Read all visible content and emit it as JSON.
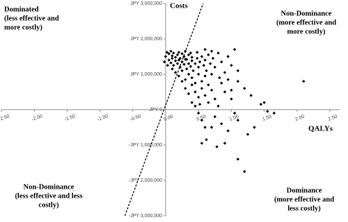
{
  "chart_data": {
    "type": "scatter",
    "x_label": "QALYs",
    "y_label": "Costs",
    "xlim": [
      -2.5,
      2.5
    ],
    "ylim": [
      -3000000,
      3000000
    ],
    "xticks": [
      {
        "value": -2.5,
        "label": "-2.50"
      },
      {
        "value": -2,
        "label": "-2.00"
      },
      {
        "value": -1.5,
        "label": "-1.50"
      },
      {
        "value": -1,
        "label": "-1.00"
      },
      {
        "value": -0.5,
        "label": "-0.50"
      },
      {
        "value": 0,
        "label": "0.00"
      },
      {
        "value": 0.5,
        "label": "0.50"
      },
      {
        "value": 1,
        "label": "1.00"
      },
      {
        "value": 1.5,
        "label": "1.50"
      },
      {
        "value": 2,
        "label": "2.00"
      },
      {
        "value": 2.5,
        "label": "2.50"
      }
    ],
    "yticks": [
      {
        "value": 3000000,
        "label": "JPY 3,000,000"
      },
      {
        "value": 2000000,
        "label": "JPY 2,000,000"
      },
      {
        "value": 1000000,
        "label": "JPY 1,000,000"
      },
      {
        "value": 0,
        "label": "JPY 0"
      },
      {
        "value": -1000000,
        "label": "-JPY 1,000,000"
      },
      {
        "value": -2000000,
        "label": "-JPY 2,000,000"
      },
      {
        "value": -3000000,
        "label": "-JPY 3,000,000"
      }
    ],
    "color": "#000000",
    "threshold_line": {
      "x": [
        -0.62,
        0.57
      ],
      "values": [
        -3000000,
        3000000
      ]
    },
    "annotations": [
      {
        "lines": [
          "Dominated",
          "(less effective and",
          "more costly)"
        ]
      },
      {
        "lines": [
          "Non-Dominance",
          "(more effective and",
          "more costly)"
        ]
      },
      {
        "lines": [
          "Non-Dominance",
          "(less effective and less",
          "costly)"
        ]
      },
      {
        "lines": [
          "Dominance",
          "(more effective and",
          "less costly)"
        ]
      }
    ],
    "x": [
      0.02,
      0.05,
      0.08,
      0.1,
      0.12,
      0.15,
      0.18,
      0.2,
      0.22,
      0.25,
      0.28,
      0.3,
      0.32,
      0.35,
      0.38,
      0.4,
      0.05,
      0.08,
      0.1,
      0.12,
      0.15,
      0.18,
      0.2,
      0.22,
      0.25,
      0.28,
      0.3,
      0.32,
      0.35,
      0.38,
      0.4,
      0.42,
      0.45,
      0.48,
      0.5,
      0.52,
      0.55,
      0.58,
      0.6,
      0.62,
      0.65,
      0.68,
      0.7,
      0.72,
      0.75,
      0.8,
      0.85,
      0.9,
      0.95,
      1.0,
      1.05,
      1.1,
      0.82,
      0.15,
      0.2,
      0.25,
      0.3,
      0.35,
      0.4,
      0.45,
      0.5,
      0.55,
      0.6,
      0.65,
      0.3,
      0.35,
      0.4,
      0.45,
      0.5,
      0.55,
      0.6,
      0.65,
      0.7,
      0.75,
      0.8,
      0.9,
      1.0,
      1.1,
      1.2,
      1.3,
      1.45,
      1.5,
      1.55,
      1.65,
      2.1,
      0.5,
      0.55,
      0.6,
      0.75,
      0.85,
      0.95,
      1.05,
      1.1,
      1.25,
      1.35,
      0.55,
      0.62,
      0.7,
      0.78,
      0.9,
      1.1,
      1.2,
      0.4,
      0.45,
      0.25,
      0.1,
      0.0,
      -0.02,
      0.03,
      0.85,
      0.95,
      1.0,
      0.7,
      0.6,
      0.48,
      0.52
    ],
    "values": [
      1620000,
      1580000,
      1650000,
      1520000,
      1600000,
      1480000,
      1550000,
      1620000,
      1450000,
      1580000,
      1500000,
      1650000,
      1420000,
      1550000,
      1600000,
      1480000,
      1400000,
      1320000,
      1450000,
      1250000,
      1380000,
      1300000,
      1400000,
      1200000,
      1350000,
      1280000,
      1420000,
      1150000,
      1300000,
      1220000,
      1380000,
      1100000,
      1300000,
      1450000,
      1200000,
      1350000,
      1500000,
      1250000,
      1400000,
      1100000,
      1550000,
      1300000,
      1000000,
      1450000,
      1200000,
      1600000,
      1350000,
      1050000,
      1500000,
      1250000,
      1700000,
      1100000,
      900000,
      1050000,
      950000,
      1100000,
      850000,
      1000000,
      900000,
      750000,
      1000000,
      800000,
      950000,
      700000,
      600000,
      450000,
      700000,
      500000,
      350000,
      600000,
      400000,
      200000,
      550000,
      300000,
      100000,
      500000,
      300000,
      800000,
      600000,
      400000,
      150000,
      200000,
      -50000,
      -100000,
      800000,
      -100000,
      -300000,
      -500000,
      -200000,
      -400000,
      -600000,
      -100000,
      -300000,
      -700000,
      -500000,
      -950000,
      -850000,
      -500000,
      -1050000,
      -950000,
      -1400000,
      -1750000,
      200000,
      100000,
      800000,
      1150000,
      1500000,
      1350000,
      1250000,
      750000,
      850000,
      550000,
      1650000,
      1700000,
      1620000,
      150000
    ]
  }
}
